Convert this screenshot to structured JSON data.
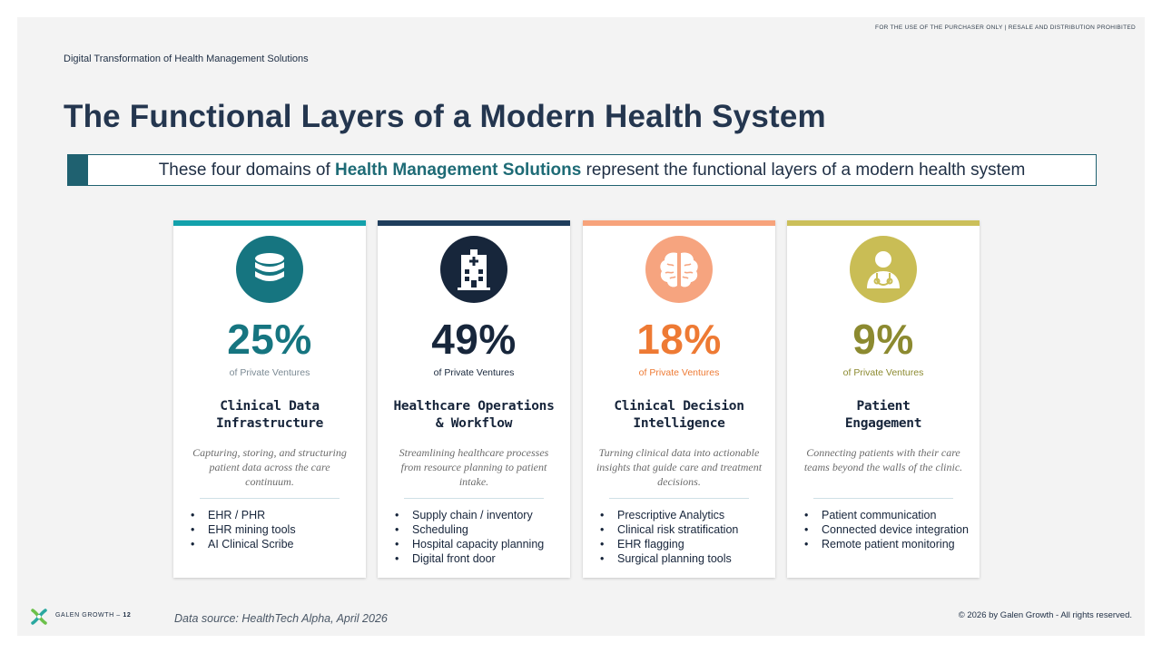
{
  "notice": "FOR THE USE OF THE PURCHASER ONLY | RESALE AND DISTRIBUTION PROHIBITED",
  "breadcrumb": "Digital Transformation of Health Management Solutions",
  "title": "The Functional Layers of a Modern Health System",
  "banner": {
    "prefix": "These four domains of",
    "highlight": "Health Management Solutions",
    "suffix": "represent the functional layers of a modern health system"
  },
  "colors": {
    "teal": "#167580",
    "navy": "#1a2a40",
    "orange": "#ee7a34",
    "olive": "#8c8a30",
    "banner_accent": "#1f6170"
  },
  "cards": [
    {
      "icon": "database-icon",
      "percent": "25%",
      "percent_label": "of Private Ventures",
      "name_line1": "Clinical Data",
      "name_line2": "Infrastructure",
      "description": "Capturing, storing, and structuring patient data across the care continuum.",
      "items": [
        "EHR / PHR",
        "EHR mining tools",
        "AI Clinical Scribe"
      ],
      "bar_color": "#13a1ab",
      "circle_color": "#167580",
      "percent_color": "#167580",
      "label_color": "#7b8a94"
    },
    {
      "icon": "hospital-icon",
      "percent": "49%",
      "percent_label": "of Private Ventures",
      "name_line1": "Healthcare Operations",
      "name_line2": "& Workflow",
      "description": "Streamlining healthcare processes from resource planning to patient intake.",
      "items": [
        "Supply chain / inventory",
        "Scheduling",
        "Hospital capacity planning",
        "Digital front door"
      ],
      "bar_color": "#1f3d5c",
      "circle_color": "#17263b",
      "percent_color": "#17263b",
      "label_color": "#17263b"
    },
    {
      "icon": "brain-icon",
      "percent": "18%",
      "percent_label": "of Private Ventures",
      "name_line1": "Clinical Decision",
      "name_line2": "Intelligence",
      "description": "Turning clinical data into actionable insights that guide care and treatment decisions.",
      "items": [
        "Prescriptive Analytics",
        "Clinical risk stratification",
        "EHR flagging",
        "Surgical planning tools"
      ],
      "bar_color": "#f7a37b",
      "circle_color": "#f6a47f",
      "percent_color": "#ee7a34",
      "label_color": "#ee7a34"
    },
    {
      "icon": "doctor-icon",
      "percent": "9%",
      "percent_label": "of Private Ventures",
      "name_line1": "Patient",
      "name_line2": "Engagement",
      "description": "Connecting patients with their care teams beyond the walls of the clinic.",
      "items": [
        "Patient communication",
        "Connected device integration",
        "Remote patient monitoring"
      ],
      "bar_color": "#cbbf5a",
      "circle_color": "#c9bd55",
      "percent_color": "#8c8a30",
      "label_color": "#8c8a30"
    }
  ],
  "footer": {
    "brand": "GALEN GROWTH",
    "page": "12",
    "data_source": "Data source: HealthTech Alpha, April 2026",
    "copyright": "© 2026 by Galen Growth  - All rights reserved."
  }
}
